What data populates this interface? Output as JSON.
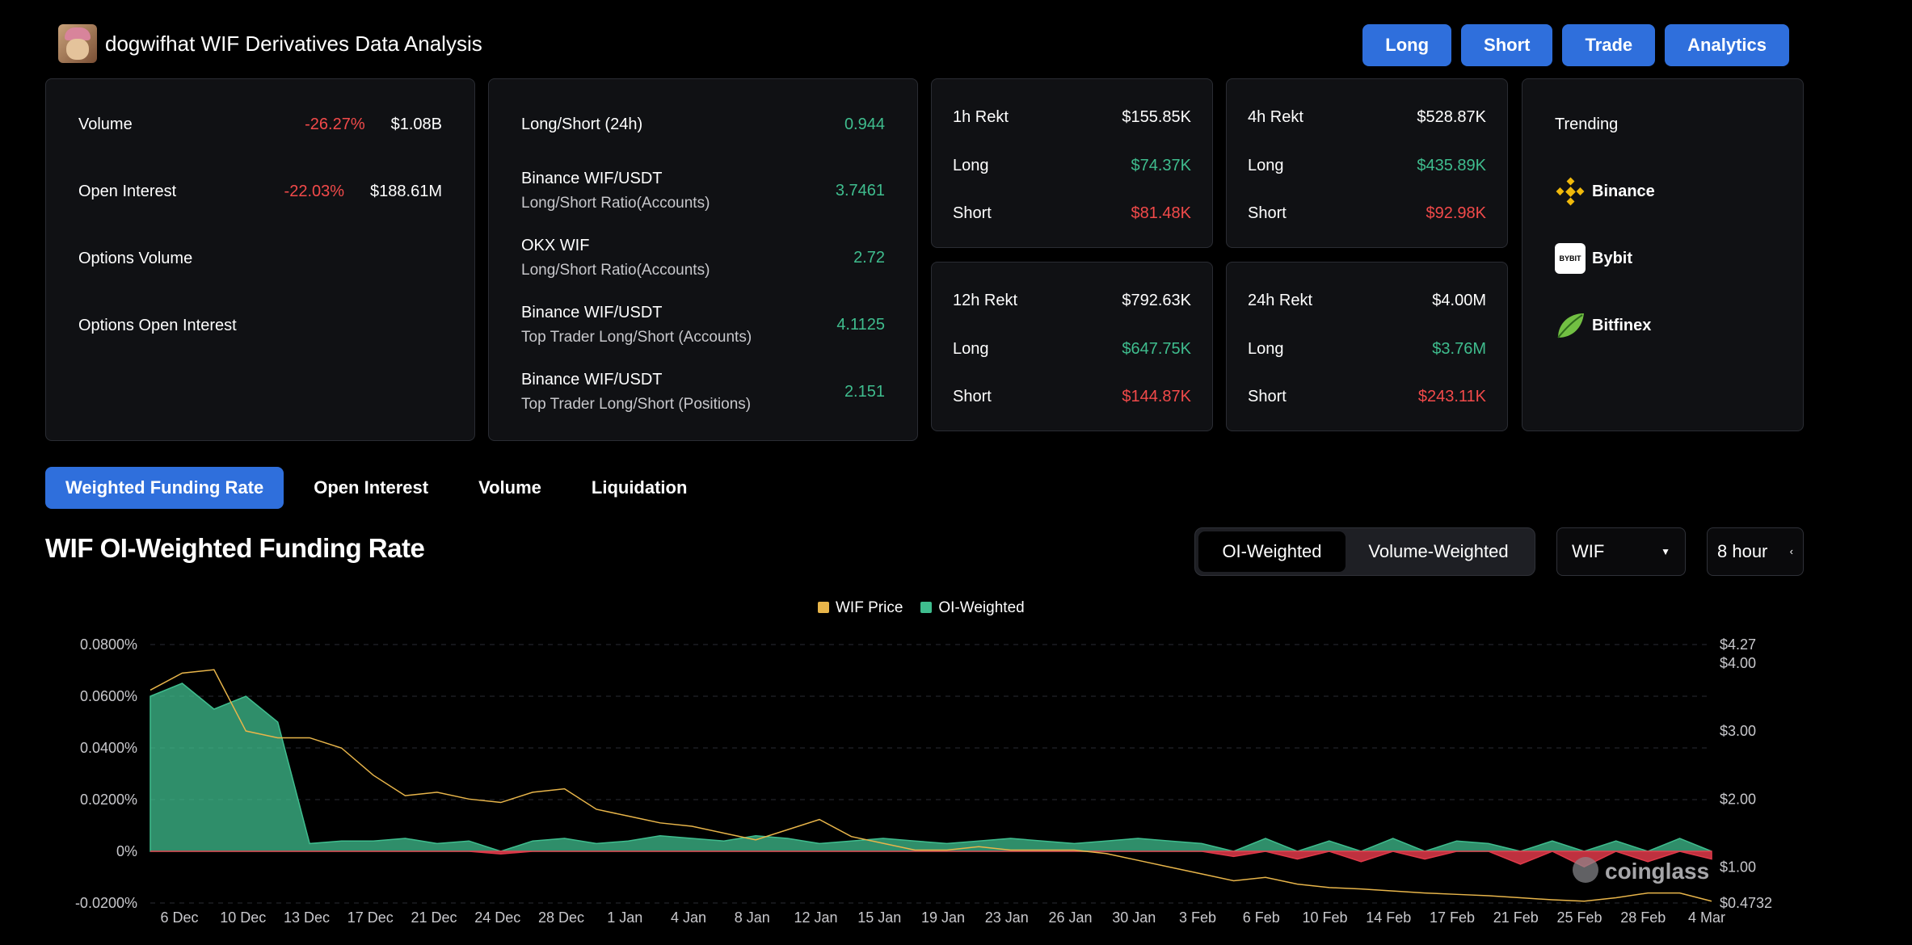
{
  "header": {
    "title": "dogwifhat WIF Derivatives Data Analysis"
  },
  "nav": {
    "long": "Long",
    "short": "Short",
    "trade": "Trade",
    "analytics": "Analytics"
  },
  "overview": {
    "volume_label": "Volume",
    "volume_change": "-26.27%",
    "volume_value": "$1.08B",
    "oi_label": "Open Interest",
    "oi_change": "-22.03%",
    "oi_value": "$188.61M",
    "options_volume_label": "Options Volume",
    "options_oi_label": "Options Open Interest"
  },
  "long_short": {
    "title": "Long/Short (24h)",
    "title_value": "0.944",
    "rows": [
      {
        "name": "Binance WIF/USDT",
        "sub": "Long/Short Ratio(Accounts)",
        "value": "3.7461"
      },
      {
        "name": "OKX WIF",
        "sub": "Long/Short Ratio(Accounts)",
        "value": "2.72"
      },
      {
        "name": "Binance WIF/USDT",
        "sub": "Top Trader Long/Short (Accounts)",
        "value": "4.1125"
      },
      {
        "name": "Binance WIF/USDT",
        "sub": "Top Trader Long/Short (Positions)",
        "value": "2.151"
      }
    ]
  },
  "rekt": {
    "long_label": "Long",
    "short_label": "Short",
    "h1": {
      "title": "1h Rekt",
      "total": "$155.85K",
      "long": "$74.37K",
      "short": "$81.48K"
    },
    "h4": {
      "title": "4h Rekt",
      "total": "$528.87K",
      "long": "$435.89K",
      "short": "$92.98K"
    },
    "h12": {
      "title": "12h Rekt",
      "total": "$792.63K",
      "long": "$647.75K",
      "short": "$144.87K"
    },
    "h24": {
      "title": "24h Rekt",
      "total": "$4.00M",
      "long": "$3.76M",
      "short": "$243.11K"
    }
  },
  "trending": {
    "title": "Trending",
    "items": [
      "Binance",
      "Bybit",
      "Bitfinex"
    ]
  },
  "tabs": [
    "Weighted Funding Rate",
    "Open Interest",
    "Volume",
    "Liquidation"
  ],
  "controls": {
    "oi_weighted": "OI-Weighted",
    "volume_weighted": "Volume-Weighted",
    "coin": "WIF",
    "interval": "8 hour"
  },
  "watermark": "coinglass",
  "colors": {
    "accent": "#2f6fdc",
    "price": "#e8b54a",
    "funding_pos": "#3fbd8e",
    "funding_neg": "#e03a4a"
  },
  "chart_data": {
    "type": "area",
    "title": "WIF OI-Weighted Funding Rate",
    "legend": [
      "WIF Price",
      "OI-Weighted"
    ],
    "legend_position": "top-center",
    "grid": true,
    "x_ticks": [
      "6 Dec",
      "10 Dec",
      "13 Dec",
      "17 Dec",
      "21 Dec",
      "24 Dec",
      "28 Dec",
      "1 Jan",
      "4 Jan",
      "8 Jan",
      "12 Jan",
      "15 Jan",
      "19 Jan",
      "23 Jan",
      "26 Jan",
      "30 Jan",
      "3 Feb",
      "6 Feb",
      "10 Feb",
      "14 Feb",
      "17 Feb",
      "21 Feb",
      "25 Feb",
      "28 Feb",
      "4 Mar"
    ],
    "y_left_ticks": [
      "0.0800%",
      "0.0600%",
      "0.0400%",
      "0.0200%",
      "0%",
      "-0.0200%"
    ],
    "y_left_range": [
      -0.02,
      0.08
    ],
    "y_right_ticks": [
      "$4.27",
      "$4.00",
      "$3.00",
      "$2.00",
      "$1.00",
      "$0.4732"
    ],
    "y_right_range": [
      0.4732,
      4.27
    ],
    "series": [
      {
        "name": "WIF Price",
        "axis": "right",
        "values": [
          3.6,
          3.85,
          3.9,
          3.0,
          2.9,
          2.9,
          2.75,
          2.35,
          2.05,
          2.1,
          2.0,
          1.95,
          2.1,
          2.15,
          1.85,
          1.75,
          1.65,
          1.6,
          1.5,
          1.4,
          1.55,
          1.7,
          1.45,
          1.35,
          1.25,
          1.25,
          1.3,
          1.25,
          1.25,
          1.25,
          1.2,
          1.1,
          1.0,
          0.9,
          0.8,
          0.85,
          0.75,
          0.7,
          0.68,
          0.65,
          0.62,
          0.6,
          0.58,
          0.55,
          0.52,
          0.5,
          0.55,
          0.62,
          0.62,
          0.5
        ]
      },
      {
        "name": "OI-Weighted",
        "axis": "left",
        "values": [
          0.06,
          0.065,
          0.055,
          0.06,
          0.05,
          0.003,
          0.004,
          0.004,
          0.005,
          0.003,
          0.004,
          -0.001,
          0.004,
          0.005,
          0.003,
          0.004,
          0.006,
          0.005,
          0.004,
          0.006,
          0.005,
          0.003,
          0.004,
          0.005,
          0.004,
          0.003,
          0.004,
          0.005,
          0.004,
          0.003,
          0.004,
          0.005,
          0.004,
          0.003,
          -0.002,
          0.005,
          -0.003,
          0.004,
          -0.004,
          0.005,
          -0.003,
          0.004,
          0.003,
          -0.005,
          0.004,
          -0.006,
          0.004,
          -0.004,
          0.005,
          -0.003
        ]
      }
    ]
  }
}
